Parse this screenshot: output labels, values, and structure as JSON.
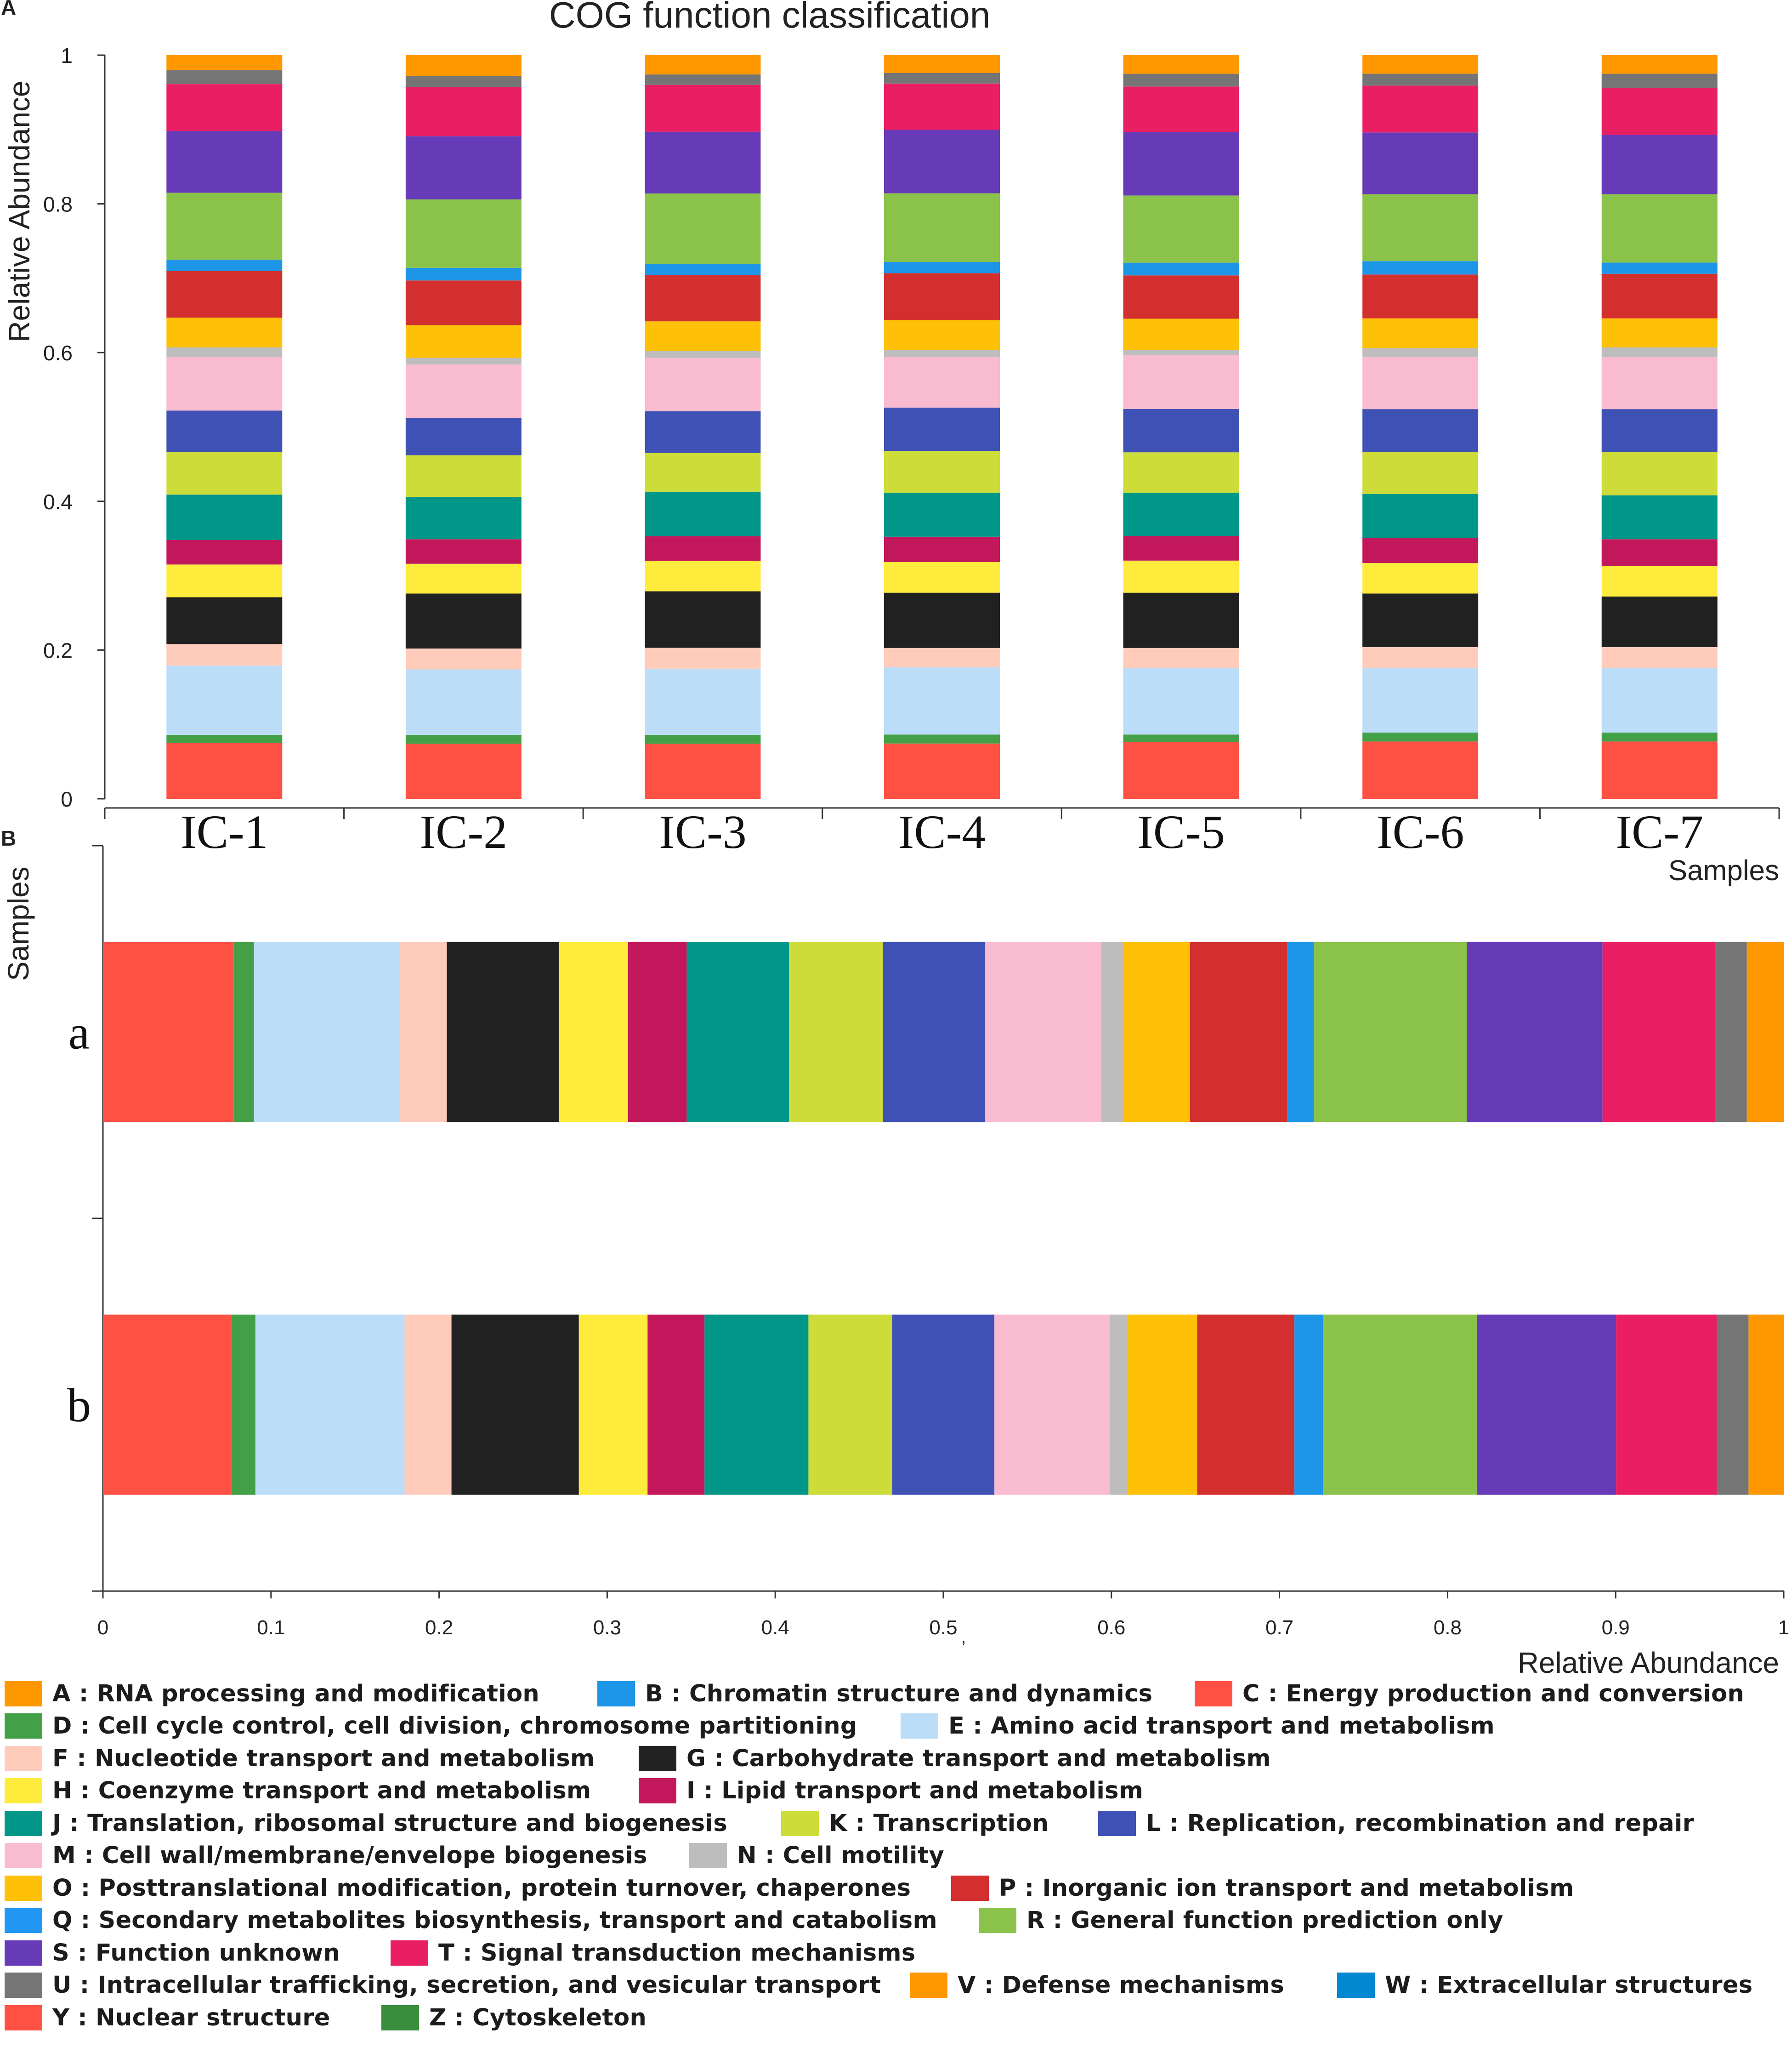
{
  "chart_data": [
    {
      "panel": "A",
      "type": "bar",
      "stacked": true,
      "orientation": "vertical",
      "title": "COG function classification",
      "xlabel": "Samples",
      "ylabel": "Relative Abundance",
      "ylim": [
        0,
        1
      ],
      "yticks": [
        "0",
        "0.2",
        "0.4",
        "0.6",
        "0.8",
        "1"
      ],
      "categories": [
        "IC-1",
        "IC-2",
        "IC-3",
        "IC-4",
        "IC-5",
        "IC-6",
        "IC-7"
      ],
      "series": [
        {
          "name": "Y",
          "values": [
            0.075,
            0.074,
            0.074,
            0.074,
            0.076,
            0.077,
            0.077
          ]
        },
        {
          "name": "D",
          "values": [
            0.011,
            0.012,
            0.012,
            0.012,
            0.01,
            0.012,
            0.012
          ]
        },
        {
          "name": "E",
          "values": [
            0.093,
            0.088,
            0.089,
            0.09,
            0.089,
            0.087,
            0.087
          ]
        },
        {
          "name": "F",
          "values": [
            0.029,
            0.028,
            0.028,
            0.026,
            0.027,
            0.028,
            0.028
          ]
        },
        {
          "name": "G",
          "values": [
            0.063,
            0.074,
            0.076,
            0.074,
            0.074,
            0.072,
            0.068
          ]
        },
        {
          "name": "H",
          "values": [
            0.044,
            0.04,
            0.041,
            0.041,
            0.043,
            0.041,
            0.041
          ]
        },
        {
          "name": "I",
          "values": [
            0.033,
            0.033,
            0.033,
            0.034,
            0.033,
            0.034,
            0.036
          ]
        },
        {
          "name": "J",
          "values": [
            0.061,
            0.057,
            0.06,
            0.059,
            0.058,
            0.059,
            0.059
          ]
        },
        {
          "name": "K",
          "values": [
            0.057,
            0.056,
            0.052,
            0.056,
            0.054,
            0.056,
            0.058
          ]
        },
        {
          "name": "L",
          "values": [
            0.056,
            0.05,
            0.056,
            0.058,
            0.058,
            0.058,
            0.058
          ]
        },
        {
          "name": "M",
          "values": [
            0.072,
            0.072,
            0.072,
            0.068,
            0.072,
            0.07,
            0.07
          ]
        },
        {
          "name": "N",
          "values": [
            0.013,
            0.009,
            0.009,
            0.009,
            0.007,
            0.012,
            0.013
          ]
        },
        {
          "name": "O",
          "values": [
            0.04,
            0.044,
            0.04,
            0.04,
            0.042,
            0.04,
            0.039
          ]
        },
        {
          "name": "P",
          "values": [
            0.063,
            0.06,
            0.062,
            0.063,
            0.058,
            0.059,
            0.06
          ]
        },
        {
          "name": "B",
          "values": [
            0.015,
            0.017,
            0.015,
            0.015,
            0.017,
            0.018,
            0.015
          ]
        },
        {
          "name": "R",
          "values": [
            0.09,
            0.092,
            0.095,
            0.092,
            0.09,
            0.09,
            0.092
          ]
        },
        {
          "name": "S",
          "values": [
            0.083,
            0.085,
            0.083,
            0.085,
            0.085,
            0.083,
            0.08
          ]
        },
        {
          "name": "T",
          "values": [
            0.063,
            0.066,
            0.063,
            0.062,
            0.061,
            0.063,
            0.063
          ]
        },
        {
          "name": "U",
          "values": [
            0.019,
            0.015,
            0.014,
            0.014,
            0.017,
            0.016,
            0.019
          ]
        },
        {
          "name": "A",
          "values": [
            0.02,
            0.028,
            0.026,
            0.024,
            0.025,
            0.025,
            0.025
          ]
        }
      ]
    },
    {
      "panel": "B",
      "type": "bar",
      "stacked": true,
      "orientation": "horizontal",
      "xlabel": "Relative Abundance",
      "ylabel": "Samples",
      "xlim": [
        0,
        1
      ],
      "xticks": [
        "0",
        "0.1",
        "0.2",
        "0.3",
        "0.4",
        "0.5",
        "0.6",
        "0.7",
        "0.8",
        "0.9",
        "1"
      ],
      "categories": [
        "a",
        "b"
      ],
      "series": [
        {
          "name": "Y",
          "values": [
            0.078,
            0.077
          ]
        },
        {
          "name": "D",
          "values": [
            0.012,
            0.014
          ]
        },
        {
          "name": "E",
          "values": [
            0.087,
            0.089
          ]
        },
        {
          "name": "F",
          "values": [
            0.028,
            0.028
          ]
        },
        {
          "name": "G",
          "values": [
            0.067,
            0.076
          ]
        },
        {
          "name": "H",
          "values": [
            0.041,
            0.041
          ]
        },
        {
          "name": "I",
          "values": [
            0.035,
            0.034
          ]
        },
        {
          "name": "J",
          "values": [
            0.061,
            0.062
          ]
        },
        {
          "name": "K",
          "values": [
            0.056,
            0.05
          ]
        },
        {
          "name": "L",
          "values": [
            0.061,
            0.061
          ]
        },
        {
          "name": "M",
          "values": [
            0.069,
            0.069
          ]
        },
        {
          "name": "N",
          "values": [
            0.013,
            0.01
          ]
        },
        {
          "name": "O",
          "values": [
            0.04,
            0.042
          ]
        },
        {
          "name": "P",
          "values": [
            0.058,
            0.058
          ]
        },
        {
          "name": "B",
          "values": [
            0.016,
            0.017
          ]
        },
        {
          "name": "R",
          "values": [
            0.091,
            0.092
          ]
        },
        {
          "name": "S",
          "values": [
            0.081,
            0.083
          ]
        },
        {
          "name": "T",
          "values": [
            0.067,
            0.06
          ]
        },
        {
          "name": "U",
          "values": [
            0.019,
            0.019
          ]
        },
        {
          "name": "A",
          "values": [
            0.022,
            0.021
          ]
        }
      ]
    }
  ],
  "panel_labels": {
    "a": "A",
    "b": "B"
  },
  "stray_mark": ",",
  "colors": {
    "A": "#FF9800",
    "B": "#1E96E8",
    "C": "#FF5044",
    "D": "#43A047",
    "E": "#BBDDF7",
    "F": "#FFCCBC",
    "G": "#212121",
    "H": "#FFEB3B",
    "I": "#C2185B",
    "J": "#009688",
    "K": "#CDDC39",
    "L": "#3F51B5",
    "M": "#F8BBD0",
    "N": "#BDBDBD",
    "O": "#FFC107",
    "P": "#D32F2F",
    "Q": "#2196F3",
    "R": "#8BC34A",
    "S": "#673AB7",
    "T": "#E91E63",
    "U": "#757575",
    "V": "#FF9800",
    "W": "#0288D1",
    "Y": "#FF5044",
    "Z": "#388E3C"
  },
  "legend": [
    {
      "code": "A",
      "label": "A : RNA processing and modification"
    },
    {
      "code": "B",
      "label": "B : Chromatin structure and dynamics"
    },
    {
      "code": "C",
      "label": "C : Energy production and conversion"
    },
    {
      "code": "D",
      "label": "D : Cell cycle control, cell division, chromosome partitioning"
    },
    {
      "code": "E",
      "label": "E : Amino acid transport and metabolism"
    },
    {
      "code": "F",
      "label": "F : Nucleotide transport and metabolism"
    },
    {
      "code": "G",
      "label": "G : Carbohydrate transport and metabolism"
    },
    {
      "code": "H",
      "label": "H : Coenzyme transport and metabolism"
    },
    {
      "code": "I",
      "label": "I : Lipid transport and metabolism"
    },
    {
      "code": "J",
      "label": "J : Translation, ribosomal structure and biogenesis"
    },
    {
      "code": "K",
      "label": "K : Transcription"
    },
    {
      "code": "L",
      "label": "L : Replication, recombination and repair"
    },
    {
      "code": "M",
      "label": "M : Cell wall/membrane/envelope biogenesis"
    },
    {
      "code": "N",
      "label": "N : Cell motility"
    },
    {
      "code": "O",
      "label": "O : Posttranslational modification, protein turnover, chaperones"
    },
    {
      "code": "P",
      "label": "P : Inorganic ion transport and metabolism"
    },
    {
      "code": "Q",
      "label": "Q : Secondary metabolites biosynthesis, transport and catabolism"
    },
    {
      "code": "R",
      "label": "R : General function prediction only"
    },
    {
      "code": "S",
      "label": "S : Function unknown"
    },
    {
      "code": "T",
      "label": "T : Signal transduction mechanisms"
    },
    {
      "code": "U",
      "label": "U : Intracellular trafficking, secretion, and vesicular transport"
    },
    {
      "code": "V",
      "label": "V : Defense mechanisms"
    },
    {
      "code": "W",
      "label": "W : Extracellular structures"
    },
    {
      "code": "Y",
      "label": "Y : Nuclear structure"
    },
    {
      "code": "Z",
      "label": "Z : Cytoskeleton"
    }
  ]
}
